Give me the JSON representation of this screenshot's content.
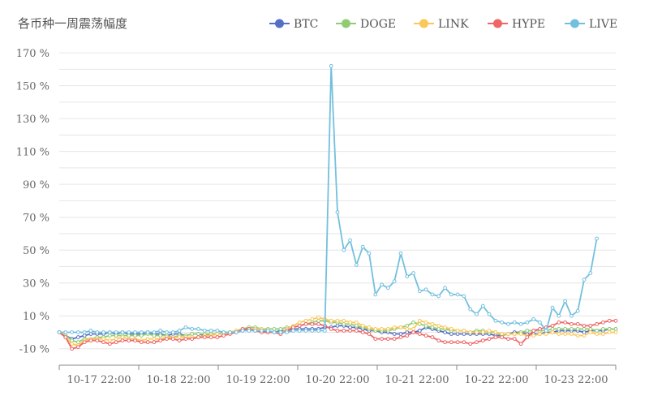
{
  "chart_data": {
    "type": "line",
    "title": "各币种一周震荡幅度",
    "x_ticks": [
      "10-17 22:00",
      "10-18 22:00",
      "10-19 22:00",
      "10-20 22:00",
      "10-21 22:00",
      "10-22 22:00",
      "10-23 22:00"
    ],
    "y_ticks": [
      "170 %",
      "150 %",
      "130 %",
      "110 %",
      "90 %",
      "70 %",
      "50 %",
      "30 %",
      "10 %",
      "-10 %"
    ],
    "ylim": [
      -20,
      175
    ],
    "grid": true,
    "legend": "top-right",
    "series": [
      {
        "name": "BTC",
        "color": "#5470c6",
        "values": [
          0,
          -2,
          -4,
          -3,
          -2,
          -1,
          -1,
          -1,
          0,
          -1,
          0,
          -1,
          -1,
          -1,
          0,
          -1,
          -1,
          -2,
          -1,
          -1,
          -2,
          -1,
          -1,
          -2,
          -1,
          -1,
          -1,
          0,
          0,
          1,
          2,
          1,
          1,
          0,
          0,
          1,
          1,
          2,
          2,
          2,
          2,
          2,
          3,
          3,
          4,
          4,
          3,
          3,
          2,
          1,
          1,
          0,
          0,
          -1,
          -1,
          0,
          0,
          1,
          3,
          2,
          1,
          0,
          -1,
          -1,
          -1,
          -1,
          -1,
          -1,
          -1,
          -2,
          -2,
          -1,
          0,
          0,
          -1,
          -1,
          -1,
          0,
          0,
          1,
          1,
          1,
          1,
          0,
          1,
          1,
          1,
          2,
          2
        ]
      },
      {
        "name": "DOGE",
        "color": "#91cc75",
        "values": [
          0,
          -2,
          -5,
          -6,
          -4,
          -4,
          -3,
          -3,
          -2,
          -2,
          -2,
          -2,
          -2,
          -2,
          -1,
          -2,
          -2,
          -2,
          -3,
          -2,
          -2,
          -1,
          -1,
          -1,
          -1,
          -1,
          0,
          0,
          1,
          2,
          3,
          3,
          2,
          2,
          2,
          2,
          3,
          3,
          4,
          5,
          6,
          7,
          7,
          6,
          6,
          5,
          5,
          4,
          3,
          2,
          1,
          1,
          1,
          2,
          3,
          4,
          6,
          5,
          4,
          3,
          2,
          2,
          1,
          1,
          1,
          0,
          1,
          1,
          0,
          0,
          -2,
          -1,
          -1,
          0,
          1,
          1,
          1,
          1,
          2,
          2,
          2,
          2,
          2,
          2,
          2,
          1,
          2,
          2,
          2
        ]
      },
      {
        "name": "LINK",
        "color": "#fac858",
        "values": [
          0,
          -3,
          -7,
          -8,
          -5,
          -4,
          -4,
          -4,
          -5,
          -4,
          -3,
          -4,
          -4,
          -5,
          -4,
          -4,
          -4,
          -3,
          -3,
          -3,
          -3,
          -3,
          -3,
          -2,
          -2,
          -1,
          -1,
          0,
          1,
          2,
          2,
          2,
          2,
          1,
          0,
          -1,
          2,
          4,
          6,
          7,
          8,
          9,
          8,
          7,
          7,
          7,
          6,
          6,
          4,
          3,
          2,
          2,
          2,
          3,
          3,
          2,
          2,
          7,
          6,
          5,
          4,
          3,
          2,
          1,
          1,
          0,
          0,
          0,
          1,
          0,
          -1,
          -1,
          -1,
          -1,
          -2,
          -2,
          -1,
          -1,
          0,
          -1,
          -1,
          -1,
          -2,
          -2,
          0,
          -1,
          -1,
          0,
          0
        ]
      },
      {
        "name": "HYPE",
        "color": "#ee6666",
        "values": [
          0,
          -3,
          -10,
          -9,
          -6,
          -5,
          -5,
          -6,
          -7,
          -6,
          -5,
          -5,
          -5,
          -6,
          -6,
          -6,
          -5,
          -4,
          -4,
          -5,
          -4,
          -4,
          -3,
          -3,
          -3,
          -3,
          -2,
          -1,
          0,
          2,
          2,
          1,
          0,
          0,
          0,
          -1,
          1,
          3,
          4,
          5,
          5,
          5,
          4,
          2,
          1,
          1,
          1,
          1,
          0,
          -1,
          -4,
          -4,
          -4,
          -4,
          -3,
          -2,
          0,
          -1,
          -2,
          -3,
          -5,
          -6,
          -6,
          -6,
          -6,
          -7,
          -6,
          -5,
          -4,
          -3,
          -3,
          -4,
          -4,
          -7,
          -3,
          1,
          2,
          3,
          4,
          6,
          6,
          5,
          5,
          4,
          4,
          5,
          6,
          7,
          7
        ]
      },
      {
        "name": "LIVE",
        "color": "#73c0de",
        "values": [
          0,
          0,
          0,
          0,
          0,
          1,
          0,
          0,
          0,
          0,
          0,
          0,
          0,
          0,
          0,
          0,
          1,
          0,
          0,
          1,
          3,
          2,
          2,
          1,
          1,
          1,
          0,
          0,
          0,
          1,
          1,
          1,
          1,
          1,
          0,
          0,
          0,
          1,
          1,
          1,
          1,
          1,
          1,
          162,
          73,
          50,
          56,
          41,
          52,
          48,
          23,
          29,
          27,
          31,
          48,
          34,
          36,
          25,
          26,
          23,
          22,
          27,
          23,
          23,
          22,
          14,
          11,
          16,
          11,
          7,
          6,
          5,
          6,
          5,
          6,
          8,
          6,
          1,
          15,
          10,
          19,
          10,
          13,
          32,
          36,
          57
        ]
      }
    ]
  }
}
